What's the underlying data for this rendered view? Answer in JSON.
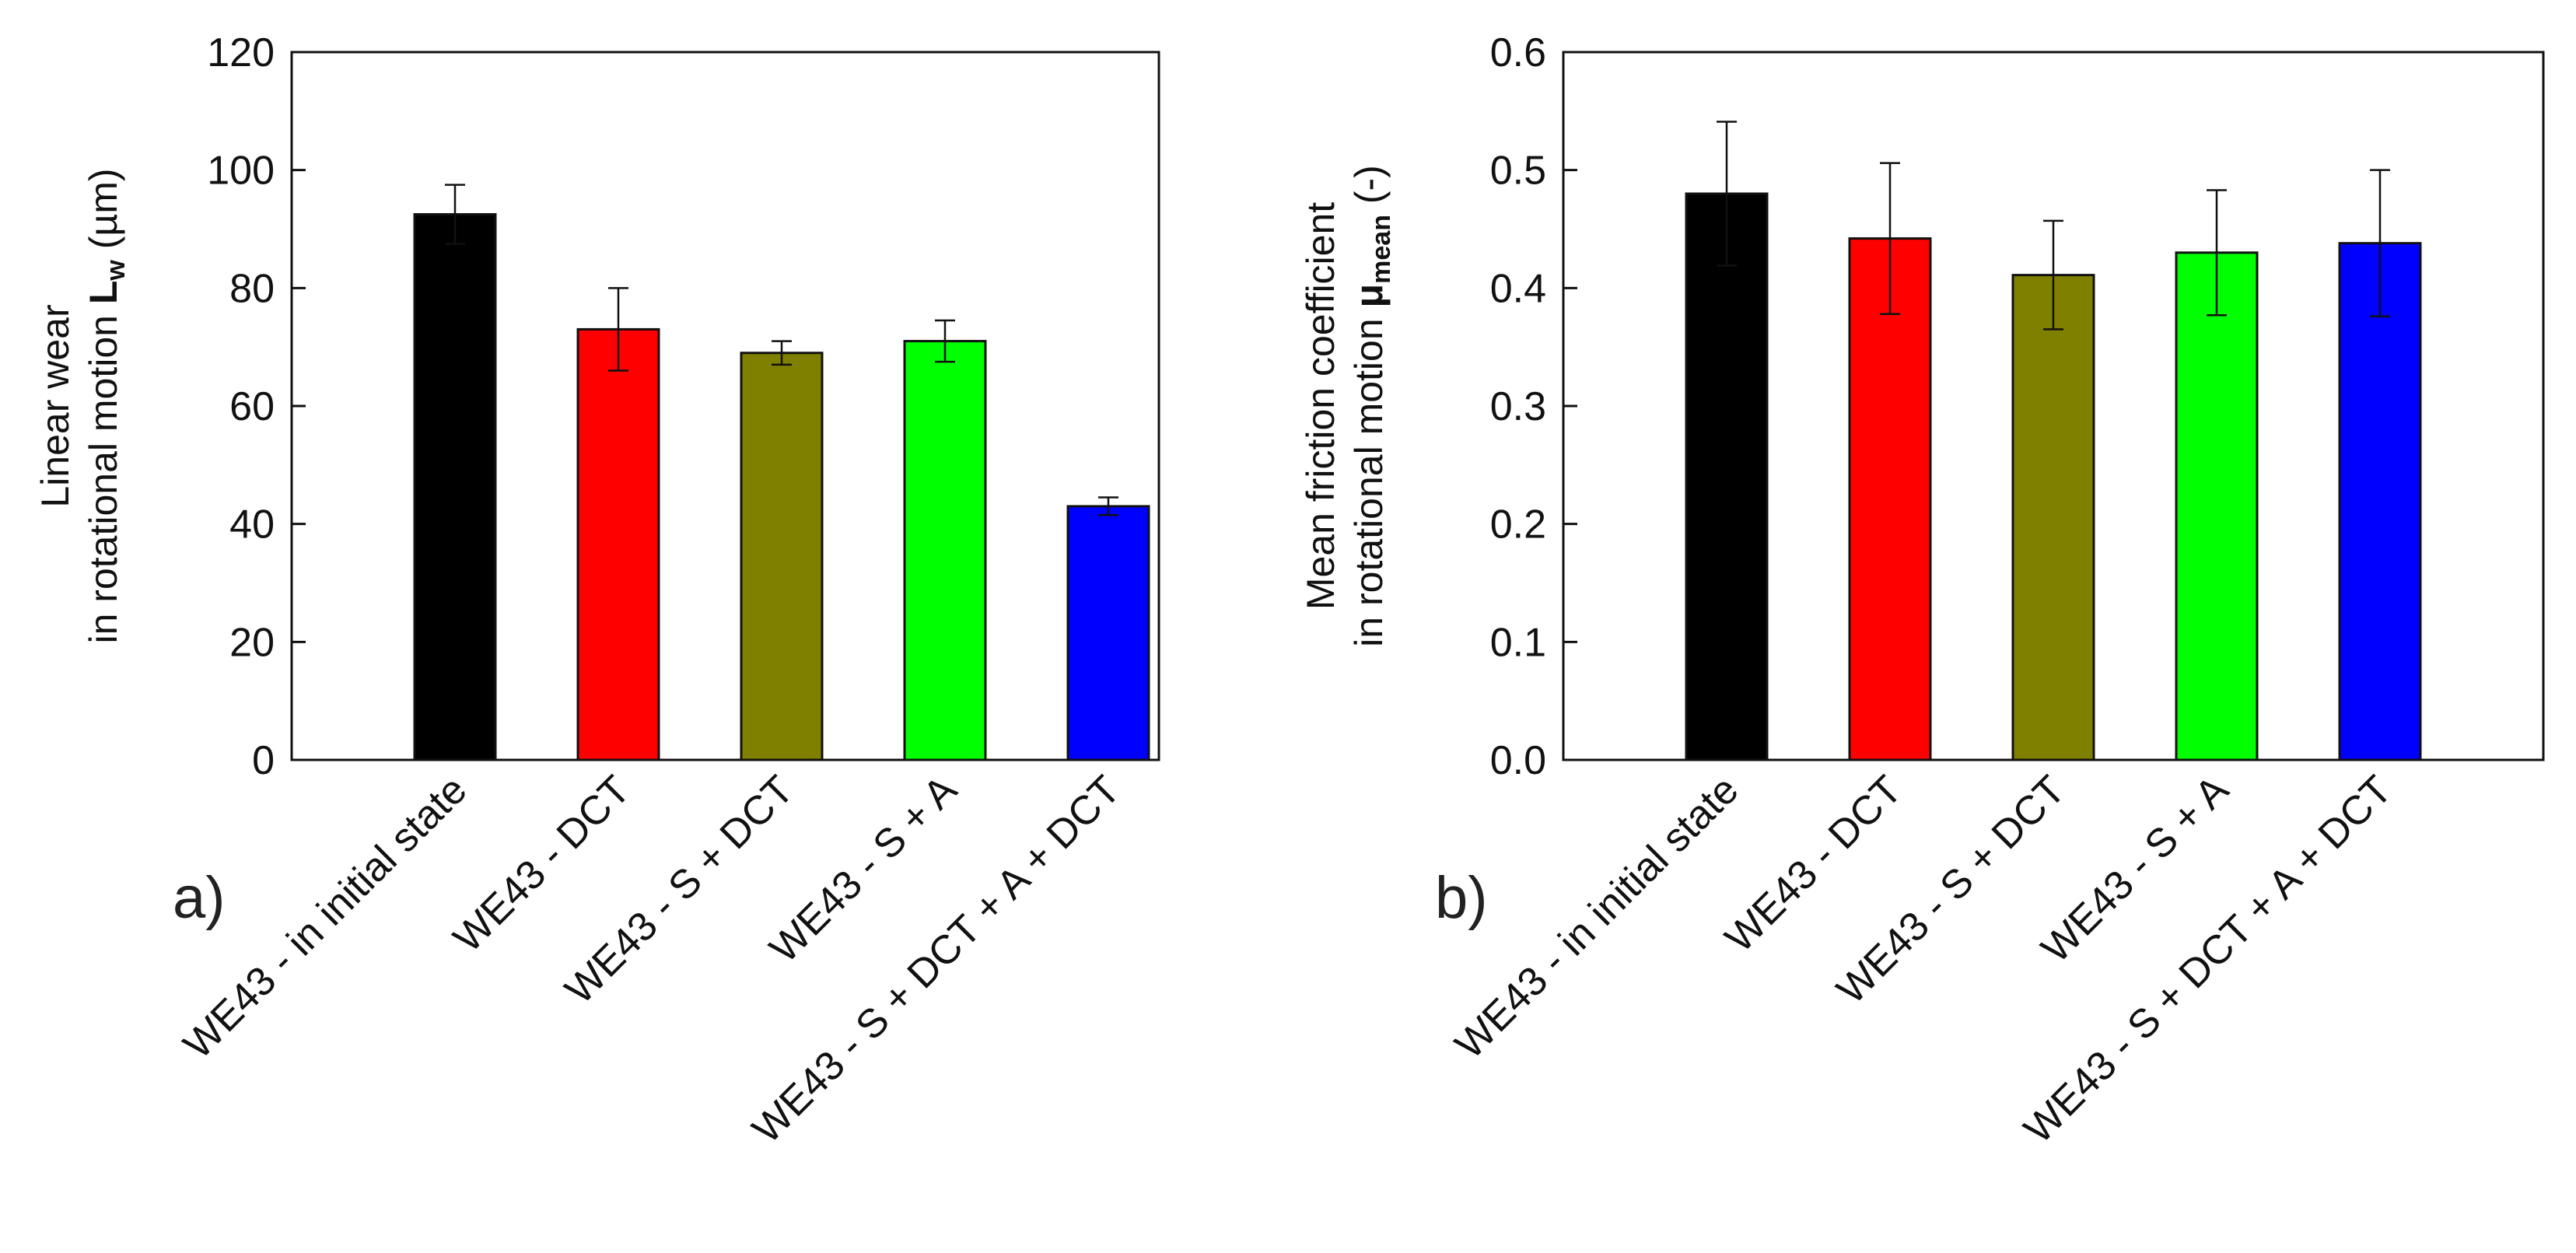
{
  "chart_data": [
    {
      "type": "bar",
      "panel_label": "a)",
      "categories": [
        "WE43 - in initial state",
        "WE43 - DCT",
        "WE43 - S + DCT",
        "WE43 - S + A",
        "WE43 - S + DCT + A + DCT"
      ],
      "values": [
        92.5,
        73,
        69,
        71,
        43
      ],
      "errors": [
        5,
        7,
        2,
        3.5,
        1.5
      ],
      "colors": [
        "#000000",
        "#ff0000",
        "#808000",
        "#00ff00",
        "#0000ff"
      ],
      "ylabel": {
        "line1": "Linear wear",
        "line2_prefix": "in rotational motion ",
        "symbol": "L",
        "subscript": "w",
        "suffix": " (µm)"
      },
      "ylim": [
        0,
        120
      ],
      "yticks": [
        "0",
        "20",
        "40",
        "60",
        "80",
        "100",
        "120"
      ]
    },
    {
      "type": "bar",
      "panel_label": "b)",
      "categories": [
        "WE43 - in initial state",
        "WE43 - DCT",
        "WE43 - S + DCT",
        "WE43 - S + A",
        "WE43 - S + DCT + A + DCT"
      ],
      "values": [
        0.48,
        0.442,
        0.411,
        0.43,
        0.438
      ],
      "errors": [
        0.061,
        0.064,
        0.046,
        0.053,
        0.062
      ],
      "colors": [
        "#000000",
        "#ff0000",
        "#808000",
        "#00ff00",
        "#0000ff"
      ],
      "ylabel": {
        "line1": "Mean friction coefficient",
        "line2_prefix": "in rotational motion ",
        "symbol": "μ",
        "subscript": "mean",
        "suffix": " (-)"
      },
      "ylim": [
        0,
        0.6
      ],
      "yticks": [
        "0.0",
        "0.1",
        "0.2",
        "0.3",
        "0.4",
        "0.5",
        "0.6"
      ]
    }
  ]
}
